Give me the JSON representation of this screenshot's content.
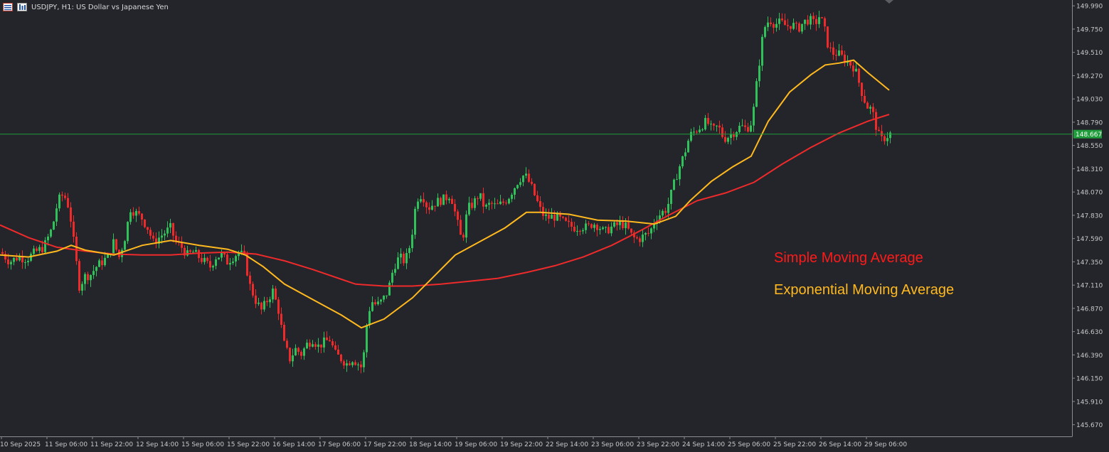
{
  "header": {
    "symbol_line": "USDJPY, H1:  US Dollar vs Japanese Yen",
    "icons": [
      "window-menu-icon",
      "chart-type-icon"
    ]
  },
  "colors": {
    "background": "#23252b",
    "bull": "#31c15a",
    "bear": "#ee2a2a",
    "sma": "#ee2a2a",
    "ema": "#ffb91e",
    "bid_line": "#1f9d3a",
    "axis_text": "#c9c9c9"
  },
  "legend": {
    "sma": "Simple Moving Average",
    "ema": "Exponential Moving Average"
  },
  "chart_data": {
    "type": "candlestick",
    "title": "USDJPY, H1:  US Dollar vs Japanese Yen",
    "price_axis": {
      "ticks": [
        "149.990",
        "149.750",
        "149.510",
        "149.270",
        "149.030",
        "148.790",
        "148.550",
        "148.310",
        "148.070",
        "147.830",
        "147.590",
        "147.350",
        "147.110",
        "146.870",
        "146.630",
        "146.390",
        "146.150",
        "145.910",
        "145.670"
      ],
      "range": [
        145.55,
        150.05
      ]
    },
    "current_price": "148.667",
    "time_axis": {
      "ticks": [
        "10 Sep 2025",
        "11 Sep 06:00",
        "11 Sep 22:00",
        "12 Sep 14:00",
        "15 Sep 06:00",
        "15 Sep 22:00",
        "16 Sep 14:00",
        "17 Sep 06:00",
        "17 Sep 22:00",
        "18 Sep 14:00",
        "19 Sep 06:00",
        "19 Sep 22:00",
        "22 Sep 14:00",
        "23 Sep 06:00",
        "23 Sep 22:00",
        "24 Sep 14:00",
        "25 Sep 06:00",
        "25 Sep 22:00",
        "26 Sep 14:00",
        "29 Sep 06:00"
      ]
    },
    "close_path": [
      [
        0,
        147.45
      ],
      [
        12,
        147.35
      ],
      [
        24,
        147.4
      ],
      [
        36,
        147.38
      ],
      [
        48,
        147.45
      ],
      [
        60,
        147.5
      ],
      [
        72,
        147.7
      ],
      [
        80,
        147.98
      ],
      [
        88,
        148.05
      ],
      [
        96,
        147.9
      ],
      [
        104,
        147.45
      ],
      [
        110,
        147.1
      ],
      [
        118,
        147.2
      ],
      [
        126,
        147.22
      ],
      [
        134,
        147.3
      ],
      [
        142,
        147.35
      ],
      [
        150,
        147.4
      ],
      [
        158,
        147.55
      ],
      [
        166,
        147.4
      ],
      [
        174,
        147.6
      ],
      [
        182,
        147.9
      ],
      [
        190,
        147.85
      ],
      [
        198,
        147.8
      ],
      [
        206,
        147.7
      ],
      [
        214,
        147.55
      ],
      [
        222,
        147.6
      ],
      [
        230,
        147.65
      ],
      [
        238,
        147.7
      ],
      [
        246,
        147.55
      ],
      [
        254,
        147.5
      ],
      [
        262,
        147.42
      ],
      [
        270,
        147.45
      ],
      [
        278,
        147.4
      ],
      [
        286,
        147.35
      ],
      [
        294,
        147.3
      ],
      [
        302,
        147.4
      ],
      [
        310,
        147.42
      ],
      [
        318,
        147.35
      ],
      [
        326,
        147.4
      ],
      [
        334,
        147.45
      ],
      [
        342,
        147.4
      ],
      [
        350,
        147.1
      ],
      [
        358,
        146.95
      ],
      [
        366,
        146.85
      ],
      [
        374,
        146.95
      ],
      [
        382,
        147.05
      ],
      [
        390,
        146.85
      ],
      [
        398,
        146.5
      ],
      [
        406,
        146.35
      ],
      [
        414,
        146.45
      ],
      [
        422,
        146.4
      ],
      [
        430,
        146.5
      ],
      [
        438,
        146.55
      ],
      [
        446,
        146.48
      ],
      [
        454,
        146.52
      ],
      [
        462,
        146.55
      ],
      [
        470,
        146.4
      ],
      [
        478,
        146.35
      ],
      [
        486,
        146.3
      ],
      [
        494,
        146.35
      ],
      [
        502,
        146.3
      ],
      [
        508,
        146.25
      ],
      [
        514,
        146.7
      ],
      [
        520,
        146.95
      ],
      [
        528,
        146.9
      ],
      [
        536,
        146.95
      ],
      [
        544,
        147.05
      ],
      [
        552,
        147.3
      ],
      [
        560,
        147.4
      ],
      [
        568,
        147.35
      ],
      [
        576,
        147.55
      ],
      [
        584,
        148.0
      ],
      [
        592,
        148.05
      ],
      [
        600,
        147.9
      ],
      [
        608,
        147.95
      ],
      [
        616,
        147.98
      ],
      [
        624,
        148.0
      ],
      [
        632,
        148.05
      ],
      [
        640,
        147.8
      ],
      [
        648,
        147.55
      ],
      [
        656,
        147.9
      ],
      [
        664,
        147.95
      ],
      [
        672,
        148.05
      ],
      [
        680,
        147.9
      ],
      [
        688,
        147.95
      ],
      [
        696,
        147.92
      ],
      [
        704,
        147.95
      ],
      [
        712,
        148.0
      ],
      [
        720,
        148.1
      ],
      [
        728,
        148.2
      ],
      [
        736,
        148.25
      ],
      [
        744,
        148.15
      ],
      [
        752,
        148.0
      ],
      [
        760,
        147.85
      ],
      [
        768,
        147.8
      ],
      [
        776,
        147.82
      ],
      [
        784,
        147.8
      ],
      [
        792,
        147.75
      ],
      [
        800,
        147.72
      ],
      [
        808,
        147.7
      ],
      [
        816,
        147.72
      ],
      [
        824,
        147.7
      ],
      [
        832,
        147.75
      ],
      [
        840,
        147.72
      ],
      [
        848,
        147.65
      ],
      [
        856,
        147.7
      ],
      [
        864,
        147.72
      ],
      [
        872,
        147.75
      ],
      [
        880,
        147.7
      ],
      [
        888,
        147.6
      ],
      [
        896,
        147.58
      ],
      [
        904,
        147.62
      ],
      [
        912,
        147.65
      ],
      [
        920,
        147.8
      ],
      [
        928,
        147.85
      ],
      [
        936,
        147.9
      ],
      [
        944,
        148.1
      ],
      [
        952,
        148.3
      ],
      [
        960,
        148.45
      ],
      [
        968,
        148.65
      ],
      [
        976,
        148.7
      ],
      [
        984,
        148.75
      ],
      [
        992,
        148.8
      ],
      [
        1000,
        148.7
      ],
      [
        1008,
        148.75
      ],
      [
        1016,
        148.62
      ],
      [
        1024,
        148.65
      ],
      [
        1032,
        148.7
      ],
      [
        1040,
        148.75
      ],
      [
        1048,
        148.72
      ],
      [
        1056,
        148.8
      ],
      [
        1064,
        149.3
      ],
      [
        1072,
        149.75
      ],
      [
        1080,
        149.85
      ],
      [
        1088,
        149.8
      ],
      [
        1096,
        149.82
      ],
      [
        1104,
        149.78
      ],
      [
        1112,
        149.8
      ],
      [
        1120,
        149.75
      ],
      [
        1128,
        149.82
      ],
      [
        1136,
        149.85
      ],
      [
        1144,
        149.8
      ],
      [
        1150,
        149.88
      ],
      [
        1156,
        149.8
      ],
      [
        1162,
        149.6
      ],
      [
        1168,
        149.5
      ],
      [
        1176,
        149.5
      ],
      [
        1184,
        149.45
      ],
      [
        1192,
        149.4
      ],
      [
        1200,
        149.35
      ],
      [
        1206,
        149.2
      ],
      [
        1212,
        149.05
      ],
      [
        1218,
        148.95
      ],
      [
        1224,
        148.92
      ],
      [
        1230,
        148.75
      ],
      [
        1236,
        148.6
      ],
      [
        1242,
        148.63
      ],
      [
        1250,
        148.67
      ]
    ],
    "series": [
      {
        "name": "Simple Moving Average",
        "color": "#ee2a2a",
        "points": [
          [
            0,
            147.73
          ],
          [
            40,
            147.6
          ],
          [
            80,
            147.5
          ],
          [
            120,
            147.46
          ],
          [
            160,
            147.43
          ],
          [
            200,
            147.42
          ],
          [
            240,
            147.42
          ],
          [
            280,
            147.44
          ],
          [
            320,
            147.45
          ],
          [
            360,
            147.43
          ],
          [
            400,
            147.36
          ],
          [
            440,
            147.27
          ],
          [
            480,
            147.17
          ],
          [
            500,
            147.12
          ],
          [
            540,
            147.1
          ],
          [
            580,
            147.1
          ],
          [
            620,
            147.12
          ],
          [
            660,
            147.15
          ],
          [
            700,
            147.18
          ],
          [
            740,
            147.24
          ],
          [
            780,
            147.31
          ],
          [
            820,
            147.4
          ],
          [
            860,
            147.52
          ],
          [
            900,
            147.67
          ],
          [
            940,
            147.83
          ],
          [
            980,
            147.98
          ],
          [
            1020,
            148.06
          ],
          [
            1060,
            148.17
          ],
          [
            1100,
            148.36
          ],
          [
            1140,
            148.53
          ],
          [
            1180,
            148.68
          ],
          [
            1220,
            148.8
          ],
          [
            1250,
            148.87
          ]
        ]
      },
      {
        "name": "Exponential Moving Average",
        "color": "#ffb91e",
        "points": [
          [
            0,
            147.42
          ],
          [
            40,
            147.4
          ],
          [
            80,
            147.46
          ],
          [
            100,
            147.52
          ],
          [
            120,
            147.47
          ],
          [
            160,
            147.42
          ],
          [
            200,
            147.52
          ],
          [
            240,
            147.57
          ],
          [
            280,
            147.52
          ],
          [
            320,
            147.48
          ],
          [
            345,
            147.42
          ],
          [
            370,
            147.3
          ],
          [
            400,
            147.12
          ],
          [
            440,
            146.96
          ],
          [
            480,
            146.8
          ],
          [
            508,
            146.67
          ],
          [
            540,
            146.76
          ],
          [
            580,
            146.98
          ],
          [
            610,
            147.2
          ],
          [
            640,
            147.42
          ],
          [
            680,
            147.58
          ],
          [
            710,
            147.7
          ],
          [
            740,
            147.86
          ],
          [
            760,
            147.86
          ],
          [
            800,
            147.84
          ],
          [
            840,
            147.78
          ],
          [
            880,
            147.77
          ],
          [
            920,
            147.74
          ],
          [
            950,
            147.82
          ],
          [
            970,
            147.98
          ],
          [
            1000,
            148.18
          ],
          [
            1030,
            148.33
          ],
          [
            1056,
            148.44
          ],
          [
            1080,
            148.8
          ],
          [
            1110,
            149.1
          ],
          [
            1140,
            149.28
          ],
          [
            1160,
            149.38
          ],
          [
            1180,
            149.4
          ],
          [
            1200,
            149.43
          ],
          [
            1220,
            149.3
          ],
          [
            1250,
            149.12
          ]
        ]
      }
    ]
  }
}
